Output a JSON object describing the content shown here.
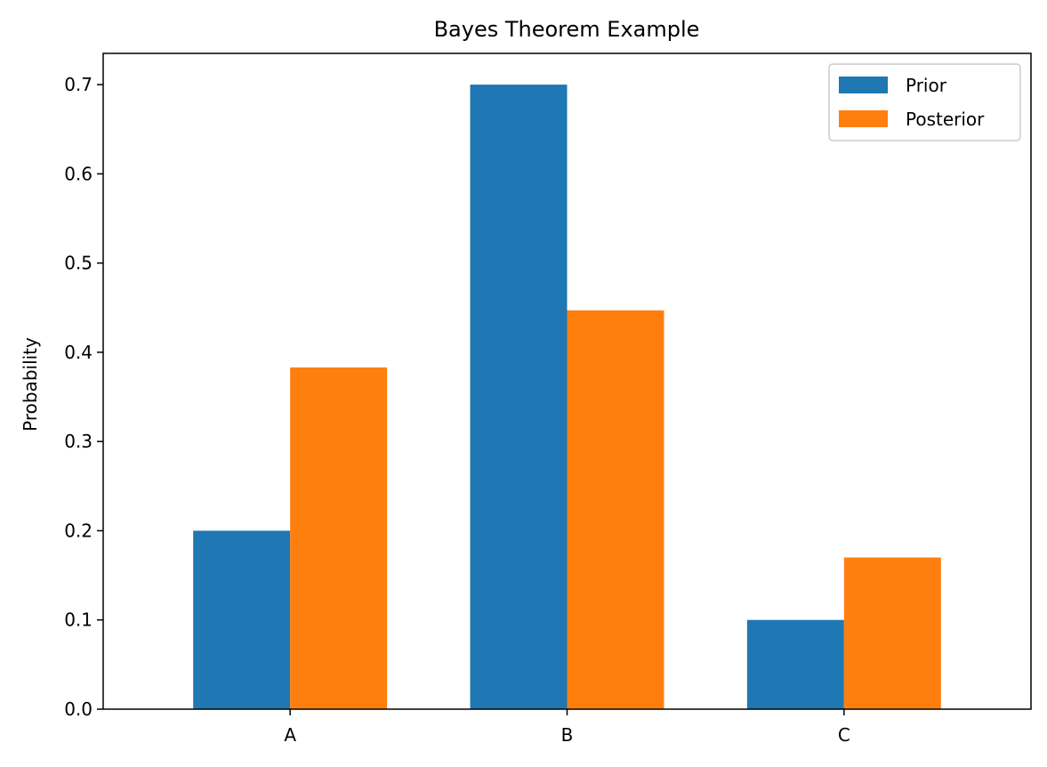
{
  "chart_data": {
    "type": "bar",
    "title": "Bayes Theorem Example",
    "xlabel": "",
    "ylabel": "Probability",
    "categories": [
      "A",
      "B",
      "C"
    ],
    "series": [
      {
        "name": "Prior",
        "values": [
          0.2,
          0.7,
          0.1
        ],
        "color": "#1f77b4"
      },
      {
        "name": "Posterior",
        "values": [
          0.383,
          0.447,
          0.17
        ],
        "color": "#ff7f0e"
      }
    ],
    "ylim": [
      0,
      0.735
    ],
    "yticks": [
      "0.0",
      "0.1",
      "0.2",
      "0.3",
      "0.4",
      "0.5",
      "0.6",
      "0.7"
    ],
    "grid": false,
    "legend_position": "top-right"
  }
}
